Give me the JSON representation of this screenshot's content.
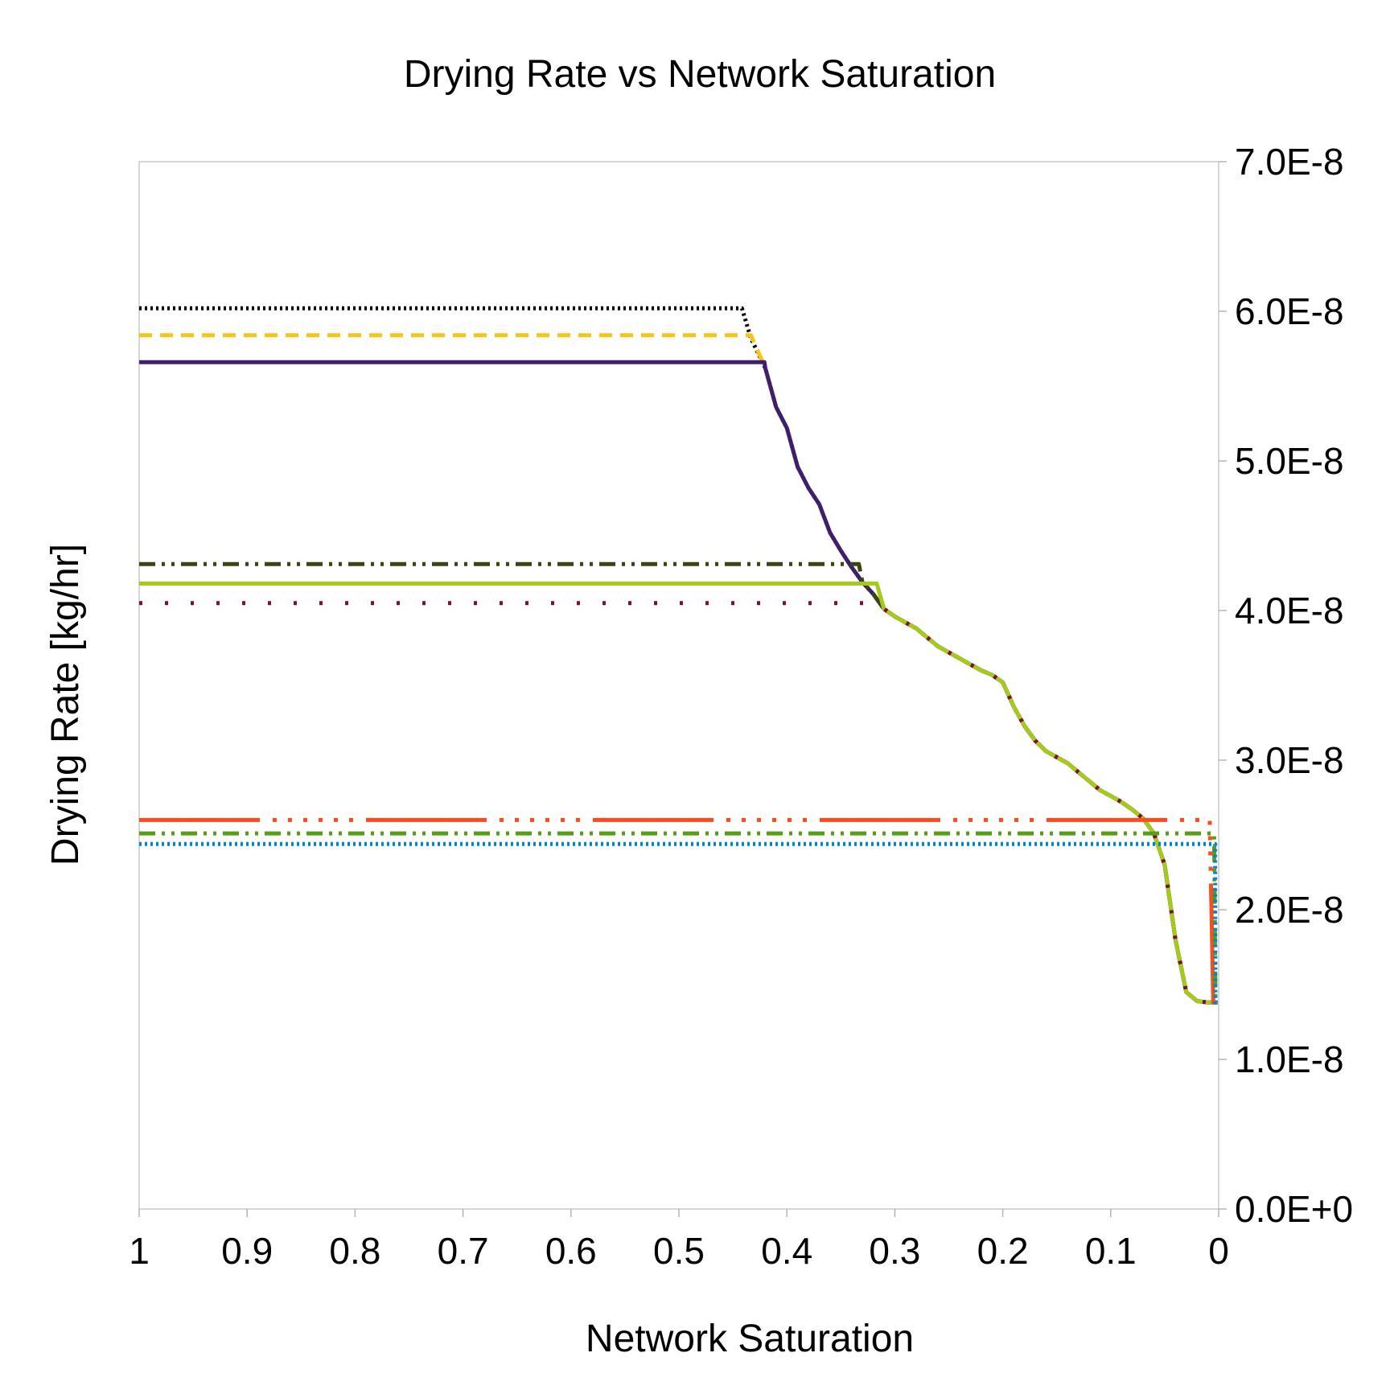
{
  "chart_data": {
    "type": "line",
    "title": "Drying Rate vs Network Saturation",
    "xlabel": "Network Saturation",
    "ylabel": "Drying Rate [kg/hr]",
    "x_reversed": true,
    "xlim": [
      1,
      0
    ],
    "ylim": [
      0,
      7e-08
    ],
    "y_axis_position": "right",
    "grid": false,
    "legend": "none",
    "x_ticks": [
      {
        "value": 1,
        "label": "1"
      },
      {
        "value": 0.9,
        "label": "0.9"
      },
      {
        "value": 0.8,
        "label": "0.8"
      },
      {
        "value": 0.7,
        "label": "0.7"
      },
      {
        "value": 0.6,
        "label": "0.6"
      },
      {
        "value": 0.5,
        "label": "0.5"
      },
      {
        "value": 0.4,
        "label": "0.4"
      },
      {
        "value": 0.3,
        "label": "0.3"
      },
      {
        "value": 0.2,
        "label": "0.2"
      },
      {
        "value": 0.1,
        "label": "0.1"
      },
      {
        "value": 0,
        "label": "0"
      }
    ],
    "y_ticks": [
      {
        "value": 0,
        "label": "0.0E+0"
      },
      {
        "value": 1e-08,
        "label": "1.0E-8"
      },
      {
        "value": 2e-08,
        "label": "2.0E-8"
      },
      {
        "value": 3e-08,
        "label": "3.0E-8"
      },
      {
        "value": 4e-08,
        "label": "4.0E-8"
      },
      {
        "value": 5e-08,
        "label": "5.0E-8"
      },
      {
        "value": 6e-08,
        "label": "6.0E-8"
      },
      {
        "value": 7e-08,
        "label": "7.0E-8"
      }
    ],
    "decline_curve": {
      "x": [
        0.4416,
        0.4333,
        0.42,
        0.41,
        0.4,
        0.39,
        0.38,
        0.37,
        0.36,
        0.35,
        0.34,
        0.33,
        0.32,
        0.31,
        0.3,
        0.29,
        0.28,
        0.27,
        0.26,
        0.25,
        0.24,
        0.23,
        0.22,
        0.21,
        0.2,
        0.19,
        0.18,
        0.17,
        0.16,
        0.15,
        0.14,
        0.13,
        0.12,
        0.11,
        0.1,
        0.09,
        0.08,
        0.07,
        0.06,
        0.05,
        0.04,
        0.03,
        0.02,
        0.01,
        0.005,
        0.003,
        0.002,
        0.001
      ],
      "y": [
        6.02e-08,
        5.82e-08,
        5.62e-08,
        5.36e-08,
        5.22e-08,
        4.96e-08,
        4.82e-08,
        4.71e-08,
        4.52e-08,
        4.4e-08,
        4.29e-08,
        4.19e-08,
        4.11e-08,
        4.01e-08,
        3.96e-08,
        3.92e-08,
        3.88e-08,
        3.82e-08,
        3.76e-08,
        3.72e-08,
        3.68e-08,
        3.64e-08,
        3.6e-08,
        3.57e-08,
        3.52e-08,
        3.36e-08,
        3.23e-08,
        3.13e-08,
        3.06e-08,
        3.02e-08,
        2.98e-08,
        2.92e-08,
        2.86e-08,
        2.8e-08,
        2.76e-08,
        2.72e-08,
        2.67e-08,
        2.61e-08,
        2.51e-08,
        2.3e-08,
        1.8e-08,
        1.45e-08,
        1.39e-08,
        1.38e-08,
        1.38e-08,
        1.38e-08,
        1.38e-08,
        1.38e-08
      ]
    },
    "series": [
      {
        "color": "#000000",
        "dash": "dotted",
        "plateau": 6.02e-08,
        "x_end": 0.4416
      },
      {
        "color": "#F5C518",
        "dash": "dashed",
        "plateau": 5.84e-08,
        "x_end": 0.4333
      },
      {
        "color": "#3F1E6E",
        "dash": "solid",
        "plateau": 5.66e-08,
        "x_end": 0.4208
      },
      {
        "color": "#3B4512",
        "dash": "dash-dot-dot",
        "plateau": 4.31e-08,
        "x_end": 0.3333
      },
      {
        "color": "#A6C91E",
        "dash": "solid",
        "plateau": 4.18e-08,
        "x_end": 0.3167
      },
      {
        "color": "#7E0F2B",
        "dash": "sparse-dotted",
        "plateau": 4.05e-08,
        "x_end": 0.325
      },
      {
        "color": "#FF4A1C",
        "dash": "long-dash-dot-dot",
        "plateau": 2.6e-08,
        "x_end": 0.0083
      },
      {
        "color": "#579D1C",
        "dash": "dash-dot-dot",
        "plateau": 2.51e-08,
        "x_end": 0.0042
      },
      {
        "color": "#0084D1",
        "dash": "dotted",
        "plateau": 2.44e-08,
        "x_end": 0.0033
      }
    ]
  }
}
